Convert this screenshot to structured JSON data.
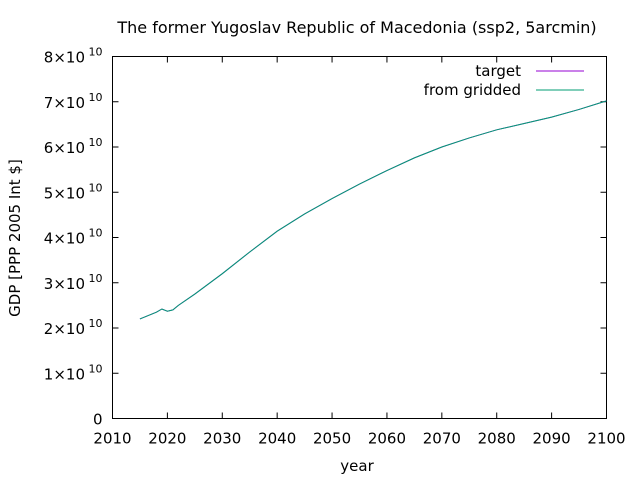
{
  "chart_data": {
    "type": "line",
    "title": "The former Yugoslav Republic of Macedonia (ssp2, 5arcmin)",
    "xlabel": "year",
    "ylabel": "GDP [PPP 2005 Int $]",
    "xlim": [
      2010,
      2100
    ],
    "ylim": [
      0,
      80000000000
    ],
    "grid": false,
    "legend_position": "top-right",
    "x_ticks": [
      2010,
      2020,
      2030,
      2040,
      2050,
      2060,
      2070,
      2080,
      2090,
      2100
    ],
    "y_ticks": [
      {
        "value": 0,
        "mantissa": "0",
        "exponent": ""
      },
      {
        "value": 10000000000,
        "mantissa": "1×10",
        "exponent": "10"
      },
      {
        "value": 20000000000,
        "mantissa": "2×10",
        "exponent": "10"
      },
      {
        "value": 30000000000,
        "mantissa": "3×10",
        "exponent": "10"
      },
      {
        "value": 40000000000,
        "mantissa": "4×10",
        "exponent": "10"
      },
      {
        "value": 50000000000,
        "mantissa": "5×10",
        "exponent": "10"
      },
      {
        "value": 60000000000,
        "mantissa": "6×10",
        "exponent": "10"
      },
      {
        "value": 70000000000,
        "mantissa": "7×10",
        "exponent": "10"
      },
      {
        "value": 80000000000,
        "mantissa": "8×10",
        "exponent": "10"
      }
    ],
    "series": [
      {
        "name": "target",
        "color": "#9400d3",
        "x": [
          2015,
          2016,
          2017,
          2018,
          2019,
          2020,
          2021,
          2022,
          2025,
          2030,
          2035,
          2040,
          2045,
          2050,
          2055,
          2060,
          2065,
          2070,
          2075,
          2080,
          2085,
          2090,
          2095,
          2100
        ],
        "y": [
          22000000000,
          22500000000,
          23000000000,
          23500000000,
          24200000000,
          23700000000,
          24000000000,
          25000000000,
          27500000000,
          32000000000,
          36800000000,
          41400000000,
          45200000000,
          48600000000,
          51800000000,
          54800000000,
          57600000000,
          60000000000,
          62000000000,
          63800000000,
          65200000000,
          66600000000,
          68300000000,
          70200000000
        ]
      },
      {
        "name": "from gridded",
        "color": "#009e73",
        "x": [
          2015,
          2016,
          2017,
          2018,
          2019,
          2020,
          2021,
          2022,
          2025,
          2030,
          2035,
          2040,
          2045,
          2050,
          2055,
          2060,
          2065,
          2070,
          2075,
          2080,
          2085,
          2090,
          2095,
          2100
        ],
        "y": [
          22000000000,
          22500000000,
          23000000000,
          23500000000,
          24200000000,
          23700000000,
          24000000000,
          25000000000,
          27500000000,
          32000000000,
          36800000000,
          41400000000,
          45200000000,
          48600000000,
          51800000000,
          54800000000,
          57600000000,
          60000000000,
          62000000000,
          63800000000,
          65200000000,
          66600000000,
          68300000000,
          70200000000
        ]
      }
    ]
  }
}
